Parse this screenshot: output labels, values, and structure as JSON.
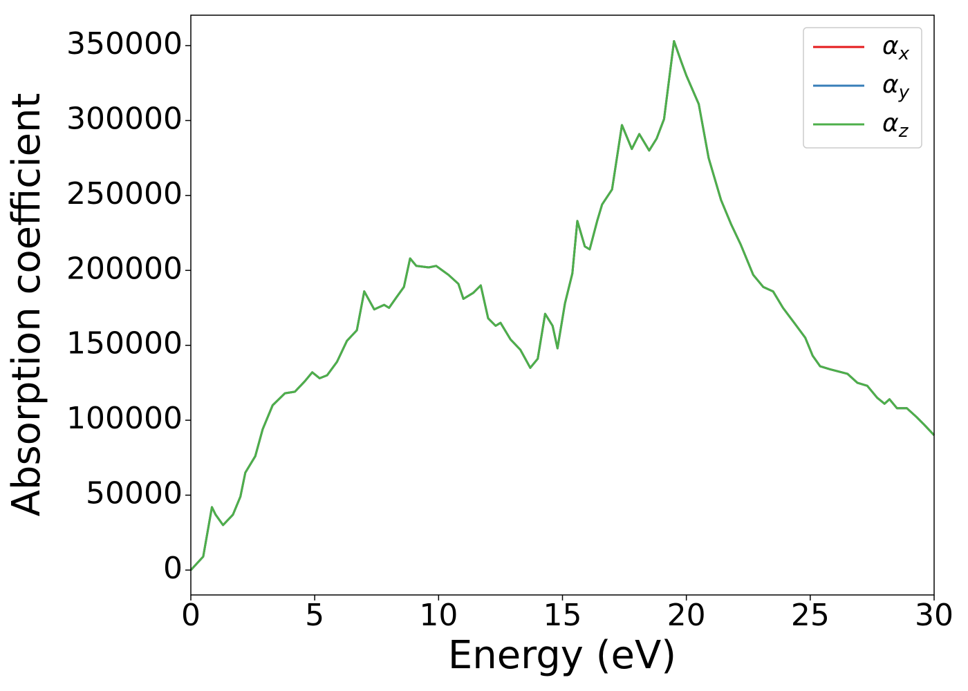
{
  "chart_data": {
    "type": "line",
    "xlabel": "Energy (eV)",
    "ylabel": "Absorption coefficient",
    "x": [
      0,
      0.5,
      0.85,
      1.0,
      1.3,
      1.7,
      2.0,
      2.2,
      2.6,
      2.9,
      3.3,
      3.8,
      4.2,
      4.6,
      4.9,
      5.2,
      5.5,
      5.9,
      6.3,
      6.7,
      7.0,
      7.4,
      7.8,
      8.0,
      8.3,
      8.6,
      8.85,
      9.1,
      9.6,
      9.9,
      10.4,
      10.8,
      11.0,
      11.4,
      11.7,
      12.0,
      12.3,
      12.5,
      12.9,
      13.3,
      13.7,
      14.0,
      14.3,
      14.6,
      14.8,
      15.1,
      15.4,
      15.6,
      15.9,
      16.1,
      16.4,
      16.6,
      17.0,
      17.4,
      17.8,
      18.1,
      18.5,
      18.8,
      19.1,
      19.5,
      19.8,
      20.0,
      20.5,
      20.9,
      21.4,
      21.8,
      22.2,
      22.7,
      23.1,
      23.5,
      23.9,
      24.4,
      24.8,
      25.1,
      25.4,
      25.8,
      26.5,
      26.9,
      27.3,
      27.7,
      28.0,
      28.2,
      28.5,
      28.9,
      29.3,
      29.6,
      30.0
    ],
    "series": [
      {
        "name": "αx",
        "color": "#e41a1c",
        "values": [
          0,
          9000,
          42000,
          37000,
          30000,
          37000,
          49000,
          65000,
          76000,
          94000,
          110000,
          118000,
          119000,
          126000,
          132000,
          128000,
          130000,
          139000,
          153000,
          160000,
          186000,
          174000,
          177000,
          175000,
          182000,
          189000,
          208000,
          203000,
          202000,
          203000,
          197000,
          191000,
          181000,
          185000,
          190000,
          168000,
          163000,
          165000,
          154000,
          147000,
          135000,
          141000,
          171000,
          163000,
          148000,
          178000,
          198000,
          233000,
          216000,
          214000,
          233000,
          244000,
          254000,
          297000,
          281000,
          291000,
          280000,
          288000,
          301000,
          353000,
          339000,
          330000,
          311000,
          275000,
          247000,
          231000,
          217000,
          197000,
          189000,
          186000,
          175000,
          164000,
          155000,
          143000,
          136000,
          134000,
          131000,
          125000,
          123000,
          115000,
          111000,
          114000,
          108000,
          108000,
          102000,
          97000,
          90000
        ]
      },
      {
        "name": "αy",
        "color": "#377eb8",
        "values": [
          0,
          9000,
          42000,
          37000,
          30000,
          37000,
          49000,
          65000,
          76000,
          94000,
          110000,
          118000,
          119000,
          126000,
          132000,
          128000,
          130000,
          139000,
          153000,
          160000,
          186000,
          174000,
          177000,
          175000,
          182000,
          189000,
          208000,
          203000,
          202000,
          203000,
          197000,
          191000,
          181000,
          185000,
          190000,
          168000,
          163000,
          165000,
          154000,
          147000,
          135000,
          141000,
          171000,
          163000,
          148000,
          178000,
          198000,
          233000,
          216000,
          214000,
          233000,
          244000,
          254000,
          297000,
          281000,
          291000,
          280000,
          288000,
          301000,
          353000,
          339000,
          330000,
          311000,
          275000,
          247000,
          231000,
          217000,
          197000,
          189000,
          186000,
          175000,
          164000,
          155000,
          143000,
          136000,
          134000,
          131000,
          125000,
          123000,
          115000,
          111000,
          114000,
          108000,
          108000,
          102000,
          97000,
          90000
        ]
      },
      {
        "name": "αz",
        "color": "#4daf4a",
        "values": [
          0,
          9000,
          42000,
          37000,
          30000,
          37000,
          49000,
          65000,
          76000,
          94000,
          110000,
          118000,
          119000,
          126000,
          132000,
          128000,
          130000,
          139000,
          153000,
          160000,
          186000,
          174000,
          177000,
          175000,
          182000,
          189000,
          208000,
          203000,
          202000,
          203000,
          197000,
          191000,
          181000,
          185000,
          190000,
          168000,
          163000,
          165000,
          154000,
          147000,
          135000,
          141000,
          171000,
          163000,
          148000,
          178000,
          198000,
          233000,
          216000,
          214000,
          233000,
          244000,
          254000,
          297000,
          281000,
          291000,
          280000,
          288000,
          301000,
          353000,
          339000,
          330000,
          311000,
          275000,
          247000,
          231000,
          217000,
          197000,
          189000,
          186000,
          175000,
          164000,
          155000,
          143000,
          136000,
          134000,
          131000,
          125000,
          123000,
          115000,
          111000,
          114000,
          108000,
          108000,
          102000,
          97000,
          90000
        ]
      }
    ],
    "xlim": [
      0,
      30
    ],
    "xticks": [
      0,
      5,
      10,
      15,
      20,
      25,
      30
    ],
    "ylim": [
      -16600,
      370300
    ],
    "yticks": [
      0,
      50000,
      100000,
      150000,
      200000,
      250000,
      300000,
      350000
    ],
    "grid": false,
    "legend": "upper right"
  }
}
